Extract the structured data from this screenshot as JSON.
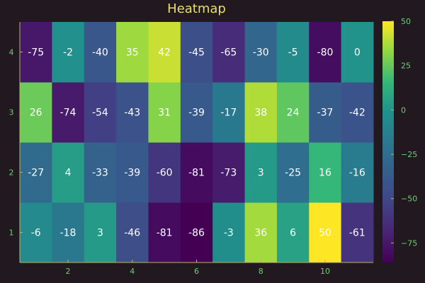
{
  "chart_data": {
    "type": "heatmap",
    "title": "Heatmap",
    "x": [
      1,
      2,
      3,
      4,
      5,
      6,
      7,
      8,
      9,
      10,
      11
    ],
    "y": [
      1,
      2,
      3,
      4
    ],
    "x_ticks": [
      "2",
      "4",
      "6",
      "8",
      "10"
    ],
    "x_tick_values": [
      2,
      4,
      6,
      8,
      10
    ],
    "y_ticks": [
      "1",
      "2",
      "3",
      "4"
    ],
    "y_tick_values": [
      1,
      2,
      3,
      4
    ],
    "values": [
      [
        -6,
        -18,
        3,
        -46,
        -81,
        -86,
        -3,
        36,
        6,
        50,
        -61
      ],
      [
        -27,
        4,
        -33,
        -39,
        -60,
        -81,
        -73,
        3,
        -25,
        16,
        -16
      ],
      [
        26,
        -74,
        -54,
        -43,
        31,
        -39,
        -17,
        38,
        24,
        -37,
        -42
      ],
      [
        -75,
        -2,
        -40,
        35,
        42,
        -45,
        -65,
        -30,
        -5,
        -80,
        0
      ]
    ],
    "value_range": [
      -86,
      50
    ],
    "colormap": "viridis",
    "colorbar": {
      "ticks": [
        "50",
        "25",
        "0",
        "−25",
        "−50",
        "−75"
      ],
      "tick_values": [
        50,
        25,
        0,
        -25,
        -50,
        -75
      ]
    },
    "grid": false,
    "legend": "none"
  },
  "colors": {
    "background": "#221920",
    "title": "#e8df6e",
    "tick_text": "#6fcf6f",
    "axis_line": "#b9b36a",
    "cell_text": "#ffffff"
  }
}
